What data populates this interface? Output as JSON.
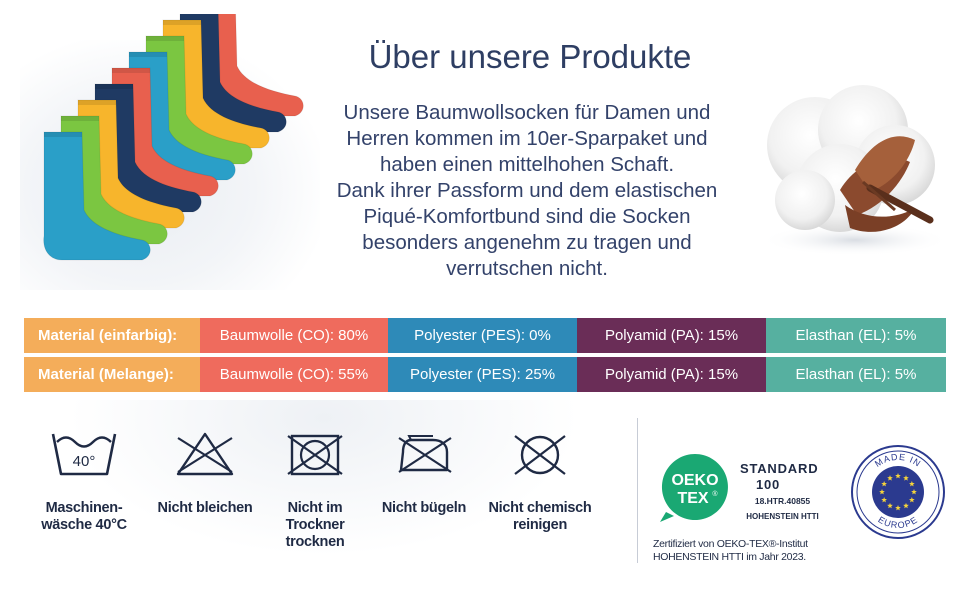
{
  "header": {
    "title": "Über unsere Produkte",
    "intro_lines": [
      "Unsere Baumwollsocken für Damen und",
      "Herren kommen im 10er-Sparpaket und",
      "haben einen mittelhohen Schaft.",
      "Dank ihrer Passform und dem elastischen",
      "Piqué-Komfortbund sind die Socken",
      "besonders angenehm zu tragen und",
      "verrutschen nicht."
    ]
  },
  "materials": {
    "rows": [
      {
        "label": "Material (einfarbig):",
        "cells": [
          "Baumwolle (CO): 80%",
          "Polyester (PES): 0%",
          "Polyamid (PA): 15%",
          "Elasthan (EL): 5%"
        ]
      },
      {
        "label": "Material (Melange):",
        "cells": [
          "Baumwolle (CO): 55%",
          "Polyester (PES): 25%",
          "Polyamid (PA): 15%",
          "Elasthan (EL): 5%"
        ]
      }
    ],
    "colors": {
      "label": "#f4ad5a",
      "cotton": "#ef6b5d",
      "polyester": "#2e8ab8",
      "polyamide": "#6a2d57",
      "elastane": "#56b0a0"
    }
  },
  "care": {
    "items": [
      {
        "icon": "wash-40-icon",
        "label_lines": [
          "Maschinen-",
          "wäsche 40°C"
        ]
      },
      {
        "icon": "no-bleach-icon",
        "label_lines": [
          "Nicht bleichen"
        ]
      },
      {
        "icon": "no-tumble-dry-icon",
        "label_lines": [
          "Nicht im",
          "Trockner",
          "trocknen"
        ]
      },
      {
        "icon": "no-iron-icon",
        "label_lines": [
          "Nicht bügeln"
        ]
      },
      {
        "icon": "no-dry-clean-icon",
        "label_lines": [
          "Nicht chemisch",
          "reinigen"
        ]
      }
    ],
    "wash_temp": "40°"
  },
  "certification": {
    "oeko_line1": "OEKO",
    "oeko_line2": "TEX",
    "oeko_mark": "®",
    "standard": "STANDARD",
    "standard_number": "100",
    "code": "18.HTR.40855",
    "institute": "HOHENSTEIN HTTI",
    "note_line1": "Zertifiziert von OEKO-TEX®-Institut",
    "note_line2": "HOHENSTEIN HTTI im Jahr 2023.",
    "badge_color": "#1aa873"
  },
  "seal": {
    "top_text": "MADE IN",
    "bottom_text": "EUROPE",
    "color": "#2b3a8f",
    "star_color": "#f5d33b"
  },
  "sock_colors": [
    "#e8604e",
    "#1f3a63",
    "#f7b52c",
    "#7bc641",
    "#2a9fc8",
    "#e8604e",
    "#1f3a63",
    "#f7b52c",
    "#7bc641",
    "#2a9fc8"
  ]
}
